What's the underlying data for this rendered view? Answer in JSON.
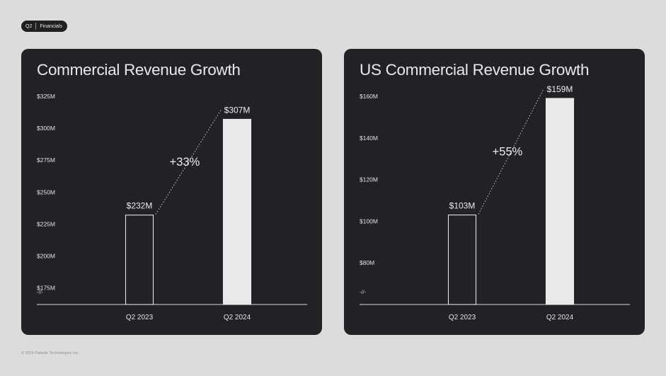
{
  "badge": {
    "left": "Q2",
    "right": "Financials"
  },
  "footer": "© 2024 Palantir Technologies Inc.",
  "chart_data": [
    {
      "type": "bar",
      "title": "Commercial Revenue Growth",
      "categories": [
        "Q2 2023",
        "Q2 2024"
      ],
      "values": [
        232,
        307
      ],
      "value_labels": [
        "$232M",
        "$307M"
      ],
      "growth_label": "+33%",
      "y_ticks": [
        175,
        200,
        225,
        250,
        275,
        300,
        325
      ],
      "y_tick_labels": [
        "$175M",
        "$200M",
        "$225M",
        "$250M",
        "$275M",
        "$300M",
        "$325M"
      ],
      "ylim": [
        162,
        325
      ],
      "axis_break": "-//-",
      "bar_styles": [
        "outline",
        "filled"
      ]
    },
    {
      "type": "bar",
      "title": "US Commercial Revenue Growth",
      "categories": [
        "Q2 2023",
        "Q2 2024"
      ],
      "values": [
        103,
        159
      ],
      "value_labels": [
        "$103M",
        "$159M"
      ],
      "growth_label": "+55%",
      "y_ticks": [
        80,
        100,
        120,
        140,
        160
      ],
      "y_tick_labels": [
        "$80M",
        "$100M",
        "$120M",
        "$140M",
        "$160M"
      ],
      "ylim": [
        60,
        160
      ],
      "axis_break": "-//-",
      "bar_styles": [
        "outline",
        "filled"
      ]
    }
  ]
}
